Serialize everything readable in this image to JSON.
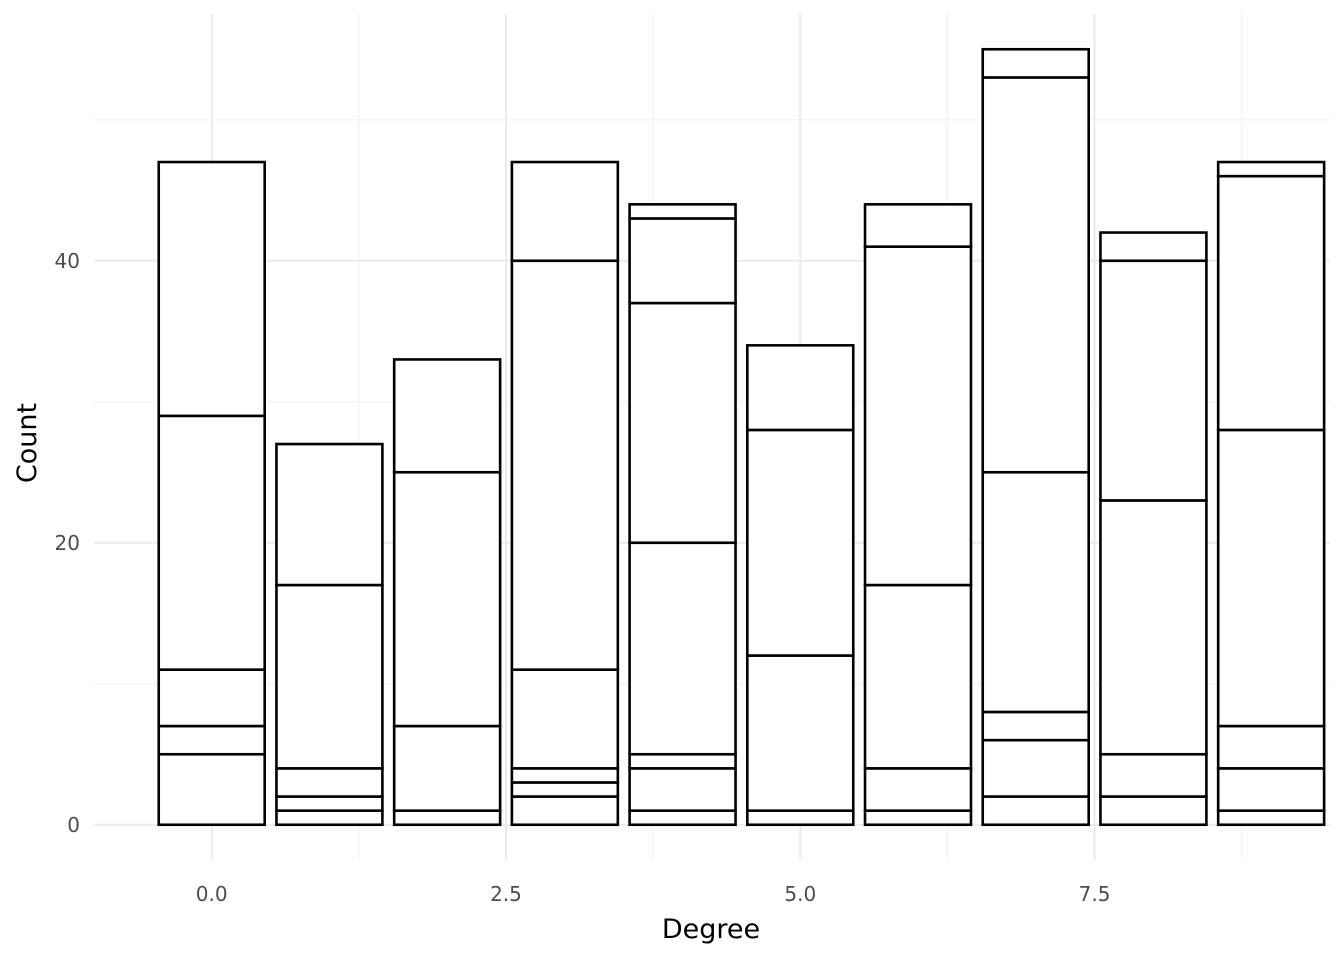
{
  "chart_data": {
    "type": "bar",
    "stacked": true,
    "title": "",
    "xlabel": "Degree",
    "ylabel": "Count",
    "xlim": [
      -1,
      9.5
    ],
    "ylim": [
      -2.5,
      57.5
    ],
    "x_ticks": [
      0.0,
      2.5,
      5.0,
      7.5
    ],
    "x_tick_labels": [
      "0.0",
      "2.5",
      "5.0",
      "7.5"
    ],
    "y_ticks": [
      0,
      20,
      40
    ],
    "y_tick_labels": [
      "0",
      "20",
      "40"
    ],
    "grid": true,
    "legend": "none",
    "fill_color": "#ffffff",
    "stroke_color": "#000000",
    "bars": [
      {
        "x": 0,
        "stack_boundaries": [
          0,
          5,
          7,
          11,
          29,
          47
        ]
      },
      {
        "x": 1,
        "stack_boundaries": [
          0,
          1,
          2,
          4,
          17,
          27
        ]
      },
      {
        "x": 2,
        "stack_boundaries": [
          0,
          1,
          7,
          25,
          33
        ]
      },
      {
        "x": 3,
        "stack_boundaries": [
          0,
          2,
          3,
          4,
          11,
          40,
          47
        ]
      },
      {
        "x": 4,
        "stack_boundaries": [
          0,
          1,
          4,
          5,
          20,
          37,
          43,
          44
        ]
      },
      {
        "x": 5,
        "stack_boundaries": [
          0,
          1,
          12,
          28,
          34
        ]
      },
      {
        "x": 6,
        "stack_boundaries": [
          0,
          1,
          4,
          17,
          41,
          44
        ]
      },
      {
        "x": 7,
        "stack_boundaries": [
          0,
          2,
          6,
          8,
          25,
          53,
          55
        ]
      },
      {
        "x": 8,
        "stack_boundaries": [
          0,
          2,
          5,
          23,
          40,
          42
        ]
      },
      {
        "x": 9,
        "stack_boundaries": [
          0,
          1,
          4,
          7,
          28,
          46,
          47
        ]
      }
    ]
  }
}
